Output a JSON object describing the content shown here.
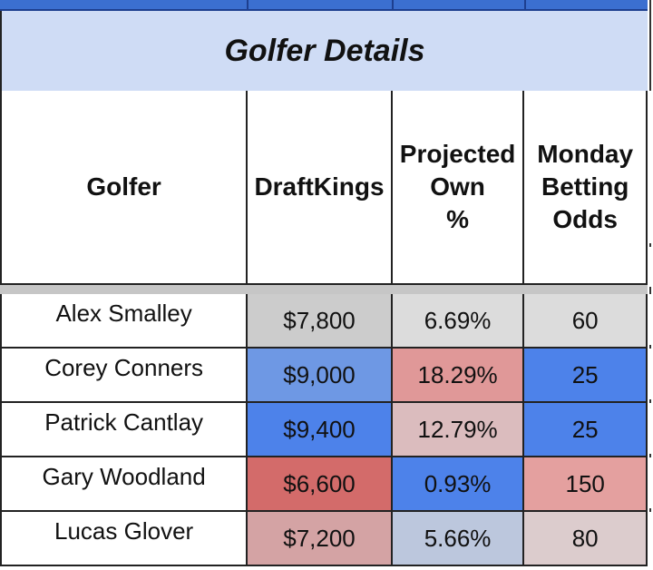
{
  "table": {
    "title": "Golfer Details",
    "headers": [
      {
        "label": "Golfer"
      },
      {
        "label": "DraftKings"
      },
      {
        "label": "Projected\nOwn\n%"
      },
      {
        "label": "Monday\nBetting\nOdds"
      }
    ],
    "rows": [
      {
        "golfer": "Alex Smalley",
        "draftkings": "$7,800",
        "own": "6.69%",
        "odds": "60",
        "colors": {
          "draftkings": "#cccccc",
          "own": "#dcdcdc",
          "odds": "#dcdcdc"
        }
      },
      {
        "golfer": "Corey Conners",
        "draftkings": "$9,000",
        "own": "18.29%",
        "odds": "25",
        "colors": {
          "draftkings": "#6e98e4",
          "own": "#e09898",
          "odds": "#4d82ea"
        }
      },
      {
        "golfer": "Patrick Cantlay",
        "draftkings": "$9,400",
        "own": "12.79%",
        "odds": "25",
        "colors": {
          "draftkings": "#4d82ea",
          "own": "#dbbcbe",
          "odds": "#4d82ea"
        }
      },
      {
        "golfer": "Gary Woodland",
        "draftkings": "$6,600",
        "own": "0.93%",
        "odds": "150",
        "colors": {
          "draftkings": "#d36b6a",
          "own": "#4d82ea",
          "odds": "#e4a09f"
        }
      },
      {
        "golfer": "Lucas Glover",
        "draftkings": "$7,200",
        "own": "5.66%",
        "odds": "80",
        "colors": {
          "draftkings": "#d4a3a4",
          "own": "#bcc7dd",
          "odds": "#dccccd"
        }
      }
    ]
  }
}
